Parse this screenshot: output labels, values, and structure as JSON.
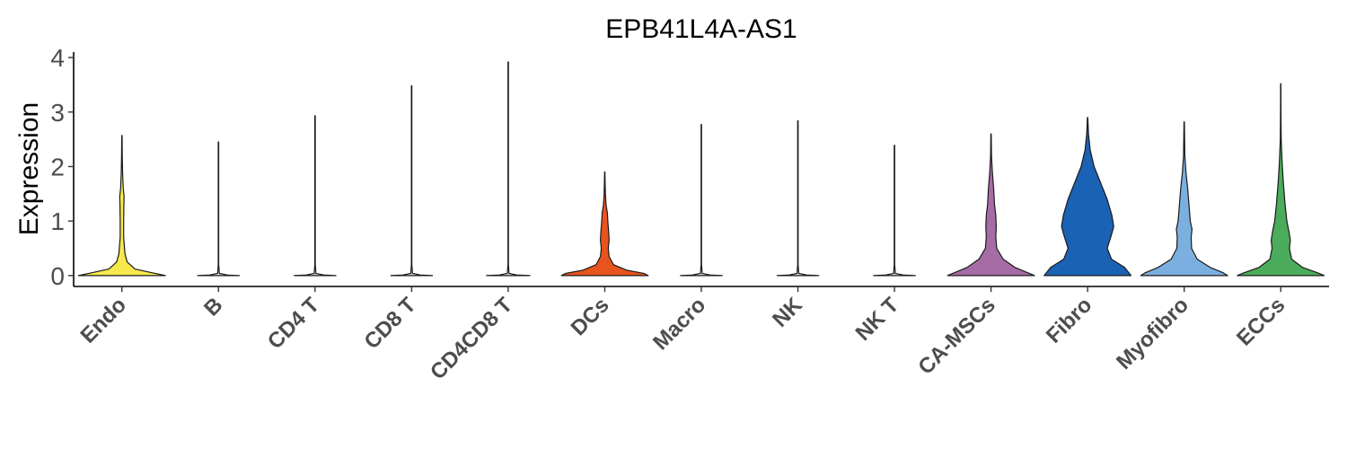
{
  "chart_data": {
    "type": "violin",
    "title": "EPB41L4A-AS1",
    "xlabel": "",
    "ylabel": "Expression",
    "ylim": [
      -0.2,
      4.1
    ],
    "yticks": [
      0,
      1,
      2,
      3,
      4
    ],
    "grid": false,
    "legend": "none",
    "categories": [
      "Endo",
      "B",
      "CD4 T",
      "CD8 T",
      "CD4CD8 T",
      "DCs",
      "Macro",
      "NK",
      "NK T",
      "CA-MSCs",
      "Fibro",
      "Myofibro",
      "ECCs"
    ],
    "series": [
      {
        "category": "Endo",
        "color": "#F7E94D",
        "max": 2.57,
        "profile": [
          [
            0,
            1.0
          ],
          [
            0.05,
            0.7
          ],
          [
            0.12,
            0.3
          ],
          [
            0.25,
            0.12
          ],
          [
            0.4,
            0.07
          ],
          [
            0.7,
            0.04
          ],
          [
            1.0,
            0.04
          ],
          [
            1.3,
            0.045
          ],
          [
            1.45,
            0.05
          ],
          [
            1.6,
            0.03
          ],
          [
            1.9,
            0.015
          ],
          [
            2.2,
            0.008
          ],
          [
            2.57,
            0.004
          ]
        ]
      },
      {
        "category": "B",
        "color": "#D9D9D9",
        "max": 2.45,
        "profile": [
          [
            0,
            0.48
          ],
          [
            0.01,
            0.2
          ],
          [
            0.04,
            0.02
          ],
          [
            0.2,
            0.005
          ],
          [
            2.45,
            0.005
          ]
        ]
      },
      {
        "category": "CD4 T",
        "color": "#D9D9D9",
        "max": 2.93,
        "profile": [
          [
            0,
            0.48
          ],
          [
            0.01,
            0.2
          ],
          [
            0.04,
            0.02
          ],
          [
            0.2,
            0.005
          ],
          [
            2.93,
            0.005
          ]
        ]
      },
      {
        "category": "CD8 T",
        "color": "#D9D9D9",
        "max": 3.48,
        "profile": [
          [
            0,
            0.48
          ],
          [
            0.01,
            0.2
          ],
          [
            0.04,
            0.02
          ],
          [
            0.2,
            0.005
          ],
          [
            3.48,
            0.005
          ]
        ]
      },
      {
        "category": "CD4CD8 T",
        "color": "#D9D9D9",
        "max": 3.92,
        "profile": [
          [
            0,
            0.5
          ],
          [
            0.01,
            0.2
          ],
          [
            0.04,
            0.02
          ],
          [
            0.2,
            0.005
          ],
          [
            3.92,
            0.005
          ]
        ]
      },
      {
        "category": "DCs",
        "color": "#E8541E",
        "max": 1.9,
        "profile": [
          [
            0,
            1.0
          ],
          [
            0.04,
            0.9
          ],
          [
            0.1,
            0.5
          ],
          [
            0.2,
            0.2
          ],
          [
            0.35,
            0.1
          ],
          [
            0.5,
            0.08
          ],
          [
            0.65,
            0.1
          ],
          [
            0.8,
            0.09
          ],
          [
            1.0,
            0.07
          ],
          [
            1.15,
            0.06
          ],
          [
            1.3,
            0.03
          ],
          [
            1.5,
            0.015
          ],
          [
            1.7,
            0.008
          ],
          [
            1.9,
            0.004
          ]
        ]
      },
      {
        "category": "Macro",
        "color": "#D9D9D9",
        "max": 2.77,
        "profile": [
          [
            0,
            0.48
          ],
          [
            0.01,
            0.2
          ],
          [
            0.04,
            0.02
          ],
          [
            0.2,
            0.005
          ],
          [
            2.77,
            0.005
          ]
        ]
      },
      {
        "category": "NK",
        "color": "#D9D9D9",
        "max": 2.84,
        "profile": [
          [
            0,
            0.48
          ],
          [
            0.01,
            0.2
          ],
          [
            0.04,
            0.02
          ],
          [
            0.2,
            0.005
          ],
          [
            2.84,
            0.005
          ]
        ]
      },
      {
        "category": "NK T",
        "color": "#D9D9D9",
        "max": 2.39,
        "profile": [
          [
            0,
            0.48
          ],
          [
            0.01,
            0.2
          ],
          [
            0.04,
            0.02
          ],
          [
            0.2,
            0.005
          ],
          [
            2.39,
            0.005
          ]
        ]
      },
      {
        "category": "CA-MSCs",
        "color": "#A66CA5",
        "max": 2.6,
        "profile": [
          [
            0,
            1.0
          ],
          [
            0.05,
            0.85
          ],
          [
            0.15,
            0.55
          ],
          [
            0.3,
            0.28
          ],
          [
            0.5,
            0.13
          ],
          [
            0.7,
            0.11
          ],
          [
            0.9,
            0.12
          ],
          [
            1.1,
            0.11
          ],
          [
            1.3,
            0.08
          ],
          [
            1.6,
            0.06
          ],
          [
            1.9,
            0.03
          ],
          [
            2.2,
            0.01
          ],
          [
            2.6,
            0.004
          ]
        ]
      },
      {
        "category": "Fibro",
        "color": "#1A62B4",
        "max": 2.9,
        "profile": [
          [
            0,
            1.0
          ],
          [
            0.05,
            0.95
          ],
          [
            0.15,
            0.85
          ],
          [
            0.3,
            0.55
          ],
          [
            0.5,
            0.45
          ],
          [
            0.75,
            0.55
          ],
          [
            0.9,
            0.6
          ],
          [
            1.1,
            0.56
          ],
          [
            1.4,
            0.45
          ],
          [
            1.7,
            0.3
          ],
          [
            2.0,
            0.15
          ],
          [
            2.3,
            0.06
          ],
          [
            2.6,
            0.02
          ],
          [
            2.9,
            0.004
          ]
        ]
      },
      {
        "category": "Myofibro",
        "color": "#7BAFE0",
        "max": 2.82,
        "profile": [
          [
            0,
            1.0
          ],
          [
            0.05,
            0.9
          ],
          [
            0.15,
            0.6
          ],
          [
            0.3,
            0.3
          ],
          [
            0.5,
            0.17
          ],
          [
            0.7,
            0.16
          ],
          [
            0.85,
            0.18
          ],
          [
            1.0,
            0.14
          ],
          [
            1.3,
            0.11
          ],
          [
            1.6,
            0.08
          ],
          [
            1.9,
            0.04
          ],
          [
            2.2,
            0.015
          ],
          [
            2.82,
            0.004
          ]
        ]
      },
      {
        "category": "ECCs",
        "color": "#4BAC5B",
        "max": 3.52,
        "profile": [
          [
            0,
            1.0
          ],
          [
            0.05,
            0.85
          ],
          [
            0.15,
            0.5
          ],
          [
            0.3,
            0.25
          ],
          [
            0.5,
            0.2
          ],
          [
            0.65,
            0.22
          ],
          [
            0.8,
            0.19
          ],
          [
            1.0,
            0.14
          ],
          [
            1.3,
            0.1
          ],
          [
            1.7,
            0.06
          ],
          [
            2.1,
            0.03
          ],
          [
            2.5,
            0.01
          ],
          [
            3.0,
            0.005
          ],
          [
            3.52,
            0.003
          ]
        ]
      }
    ]
  }
}
